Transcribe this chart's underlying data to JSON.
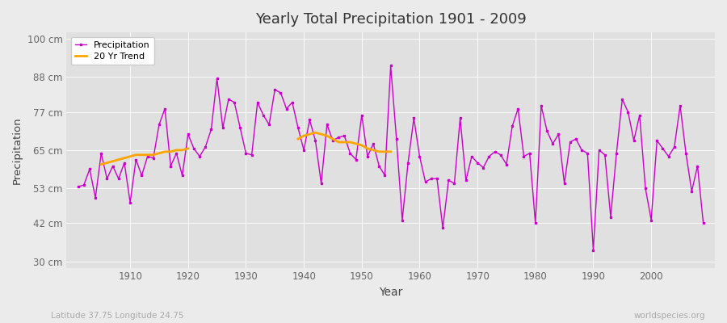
{
  "title": "Yearly Total Precipitation 1901 - 2009",
  "xlabel": "Year",
  "ylabel": "Precipitation",
  "subtitle": "Latitude 37.75 Longitude 24.75",
  "watermark": "worldspecies.org",
  "years": [
    1901,
    1902,
    1903,
    1904,
    1905,
    1906,
    1907,
    1908,
    1909,
    1910,
    1911,
    1912,
    1913,
    1914,
    1915,
    1916,
    1917,
    1918,
    1919,
    1920,
    1921,
    1922,
    1923,
    1924,
    1925,
    1926,
    1927,
    1928,
    1929,
    1930,
    1931,
    1932,
    1933,
    1934,
    1935,
    1936,
    1937,
    1938,
    1939,
    1940,
    1941,
    1942,
    1943,
    1944,
    1945,
    1946,
    1947,
    1948,
    1949,
    1950,
    1951,
    1952,
    1953,
    1954,
    1955,
    1956,
    1957,
    1958,
    1959,
    1960,
    1961,
    1962,
    1963,
    1964,
    1965,
    1966,
    1967,
    1968,
    1969,
    1970,
    1971,
    1972,
    1973,
    1974,
    1975,
    1976,
    1977,
    1978,
    1979,
    1980,
    1981,
    1982,
    1983,
    1984,
    1985,
    1986,
    1987,
    1988,
    1989,
    1990,
    1991,
    1992,
    1993,
    1994,
    1995,
    1996,
    1997,
    1998,
    1999,
    2000,
    2001,
    2002,
    2003,
    2004,
    2005,
    2006,
    2007,
    2008,
    2009
  ],
  "precipitation": [
    53.5,
    54.0,
    59.0,
    50.0,
    64.0,
    56.0,
    60.0,
    56.0,
    61.0,
    48.5,
    62.0,
    57.0,
    63.0,
    62.5,
    73.0,
    78.0,
    60.0,
    64.0,
    57.0,
    70.0,
    65.5,
    63.0,
    66.0,
    71.5,
    87.5,
    72.0,
    81.0,
    80.0,
    72.0,
    64.0,
    63.5,
    80.0,
    76.0,
    73.0,
    84.0,
    83.0,
    78.0,
    80.0,
    72.0,
    65.0,
    74.5,
    68.0,
    54.5,
    73.0,
    68.0,
    69.0,
    69.5,
    64.0,
    62.0,
    76.0,
    63.0,
    67.0,
    60.0,
    57.0,
    91.5,
    68.5,
    43.0,
    61.0,
    75.0,
    63.0,
    55.0,
    56.0,
    56.0,
    40.5,
    55.5,
    54.5,
    75.0,
    55.5,
    63.0,
    61.0,
    59.5,
    63.0,
    64.5,
    63.5,
    60.5,
    72.5,
    78.0,
    63.0,
    64.0,
    42.0,
    79.0,
    71.0,
    67.0,
    70.0,
    54.5,
    67.5,
    68.5,
    65.0,
    64.0,
    33.5,
    65.0,
    63.5,
    44.0,
    64.0,
    81.0,
    77.0,
    68.0,
    76.0,
    53.0,
    43.0,
    68.0,
    65.5,
    63.0,
    66.0,
    79.0,
    64.0,
    52.0,
    60.0,
    42.0
  ],
  "trend_segment1_years": [
    1905,
    1906,
    1907,
    1908,
    1909,
    1910,
    1911,
    1912,
    1913,
    1914,
    1915,
    1916,
    1917,
    1918,
    1919,
    1920
  ],
  "trend_segment1_values": [
    60.5,
    61.0,
    61.5,
    62.0,
    62.5,
    63.0,
    63.5,
    63.5,
    63.5,
    63.5,
    64.0,
    64.5,
    64.5,
    65.0,
    65.0,
    65.5
  ],
  "trend_segment2_years": [
    1939,
    1940,
    1941,
    1942,
    1943,
    1944,
    1945,
    1946,
    1947,
    1948,
    1949,
    1950,
    1951,
    1952,
    1953,
    1954,
    1955
  ],
  "trend_segment2_values": [
    68.5,
    69.5,
    70.0,
    70.5,
    70.0,
    69.5,
    68.5,
    67.5,
    67.5,
    67.5,
    67.0,
    66.5,
    65.5,
    65.0,
    64.5,
    64.5,
    64.5
  ],
  "line_color": "#CC00CC",
  "trend_color": "#FFA500",
  "bg_color": "#EBEBEB",
  "plot_bg_color": "#E0E0E0",
  "grid_color": "#FFFFFF",
  "yticks": [
    30,
    42,
    53,
    65,
    77,
    88,
    100
  ],
  "ytick_labels": [
    "30 cm",
    "42 cm",
    "53 cm",
    "65 cm",
    "77 cm",
    "88 cm",
    "100 cm"
  ],
  "ylim": [
    28,
    102
  ],
  "xlim": [
    1899,
    2011
  ]
}
